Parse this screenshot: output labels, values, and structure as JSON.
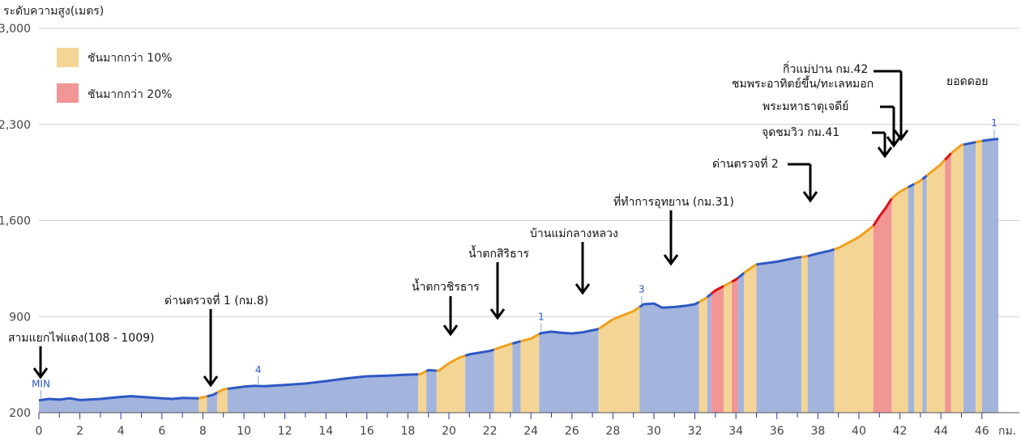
{
  "chart_data": {
    "type": "area",
    "title": "ระดับความสูง(เมตร)",
    "xlabel": "กม.",
    "ylabel": "",
    "xlim": [
      0,
      46.8
    ],
    "ylim": [
      200,
      3000
    ],
    "yticks": [
      200,
      900,
      1600,
      2300,
      3000
    ],
    "ytick_labels": [
      "200",
      "900",
      "1,600",
      "2,300",
      "3,000"
    ],
    "xticks": [
      0,
      2,
      4,
      6,
      8,
      10,
      12,
      14,
      16,
      18,
      20,
      22,
      24,
      26,
      28,
      30,
      32,
      34,
      36,
      38,
      40,
      42,
      44,
      46
    ],
    "xtick_labels": [
      "0",
      "2",
      "4",
      "6",
      "8",
      "10",
      "12",
      "14",
      "16",
      "18",
      "20",
      "22",
      "24",
      "26",
      "28",
      "30",
      "32",
      "34",
      "36",
      "38",
      "40",
      "42",
      "44",
      "46"
    ],
    "grid": true,
    "legend": [
      {
        "label": "ชันมากกว่า 10%",
        "color": "#f5d595"
      },
      {
        "label": "ชันมากกว่า 20%",
        "color": "#f19595"
      }
    ],
    "colors": {
      "flat_fill": "#a3b4dd",
      "flat_line": "#2d58c4",
      "steep10_fill": "#f5d595",
      "steep10_line": "#f0a020",
      "steep20_fill": "#f19595",
      "steep20_line": "#e01010"
    },
    "profile": [
      [
        0,
        290
      ],
      [
        0.5,
        300
      ],
      [
        1,
        295
      ],
      [
        1.5,
        305
      ],
      [
        2,
        292
      ],
      [
        3,
        300
      ],
      [
        4,
        315
      ],
      [
        4.5,
        320
      ],
      [
        5,
        315
      ],
      [
        6,
        305
      ],
      [
        6.5,
        300
      ],
      [
        7,
        308
      ],
      [
        7.8,
        305
      ],
      [
        8.5,
        330
      ],
      [
        9,
        370
      ],
      [
        10,
        390
      ],
      [
        10.5,
        395
      ],
      [
        11,
        393
      ],
      [
        12,
        402
      ],
      [
        13,
        412
      ],
      [
        14,
        430
      ],
      [
        15,
        450
      ],
      [
        16,
        465
      ],
      [
        17,
        470
      ],
      [
        18,
        477
      ],
      [
        18.6,
        480
      ],
      [
        19,
        510
      ],
      [
        19.5,
        505
      ],
      [
        20,
        560
      ],
      [
        20.5,
        600
      ],
      [
        21,
        625
      ],
      [
        22,
        650
      ],
      [
        23,
        700
      ],
      [
        24,
        740
      ],
      [
        24.5,
        780
      ],
      [
        25,
        790
      ],
      [
        25.5,
        782
      ],
      [
        26,
        777
      ],
      [
        26.5,
        785
      ],
      [
        27,
        800
      ],
      [
        27.3,
        810
      ],
      [
        28,
        880
      ],
      [
        29,
        940
      ],
      [
        29.5,
        990
      ],
      [
        30,
        995
      ],
      [
        30.4,
        965
      ],
      [
        31,
        970
      ],
      [
        31.6,
        980
      ],
      [
        32,
        990
      ],
      [
        32.5,
        1030
      ],
      [
        33,
        1090
      ],
      [
        34,
        1170
      ],
      [
        34.5,
        1230
      ],
      [
        35,
        1280
      ],
      [
        35.5,
        1290
      ],
      [
        36,
        1300
      ],
      [
        37,
        1330
      ],
      [
        37.5,
        1340
      ],
      [
        38,
        1360
      ],
      [
        38.6,
        1380
      ],
      [
        39,
        1400
      ],
      [
        40,
        1480
      ],
      [
        40.7,
        1560
      ],
      [
        41,
        1630
      ],
      [
        41.3,
        1690
      ],
      [
        41.6,
        1760
      ],
      [
        42,
        1810
      ],
      [
        42.5,
        1850
      ],
      [
        43,
        1890
      ],
      [
        43.5,
        1950
      ],
      [
        44,
        2010
      ],
      [
        44.5,
        2090
      ],
      [
        45,
        2150
      ],
      [
        45.5,
        2165
      ],
      [
        46,
        2180
      ],
      [
        46.5,
        2190
      ],
      [
        46.8,
        2195
      ]
    ],
    "segments": [
      [
        0,
        7.8,
        "flat"
      ],
      [
        7.8,
        8.2,
        "s10"
      ],
      [
        8.2,
        8.7,
        "flat"
      ],
      [
        8.7,
        9.2,
        "s10"
      ],
      [
        9.2,
        18.5,
        "flat"
      ],
      [
        18.5,
        18.9,
        "s10"
      ],
      [
        18.9,
        19.4,
        "flat"
      ],
      [
        19.4,
        20.8,
        "s10"
      ],
      [
        20.8,
        22.2,
        "flat"
      ],
      [
        22.2,
        23.1,
        "s10"
      ],
      [
        23.1,
        23.5,
        "flat"
      ],
      [
        23.5,
        24.4,
        "s10"
      ],
      [
        24.4,
        27.3,
        "flat"
      ],
      [
        27.3,
        29.3,
        "s10"
      ],
      [
        29.3,
        32.2,
        "flat"
      ],
      [
        32.2,
        32.6,
        "s10"
      ],
      [
        32.6,
        32.8,
        "flat"
      ],
      [
        32.8,
        33.4,
        "s20"
      ],
      [
        33.4,
        33.8,
        "s10"
      ],
      [
        33.8,
        34.1,
        "s20"
      ],
      [
        34.1,
        34.4,
        "flat"
      ],
      [
        34.4,
        35,
        "s10"
      ],
      [
        35,
        37.2,
        "flat"
      ],
      [
        37.2,
        37.5,
        "s10"
      ],
      [
        37.5,
        38.8,
        "flat"
      ],
      [
        38.8,
        40.7,
        "s10"
      ],
      [
        40.7,
        41.6,
        "s20"
      ],
      [
        41.6,
        42.4,
        "s10"
      ],
      [
        42.4,
        42.7,
        "flat"
      ],
      [
        42.7,
        43.1,
        "s10"
      ],
      [
        43.1,
        43.3,
        "flat"
      ],
      [
        43.3,
        44.2,
        "s10"
      ],
      [
        44.2,
        44.5,
        "s20"
      ],
      [
        44.5,
        45.1,
        "s10"
      ],
      [
        45.1,
        45.7,
        "flat"
      ],
      [
        45.7,
        46,
        "s10"
      ],
      [
        46,
        46.8,
        "flat"
      ]
    ],
    "annotations": [
      {
        "text": "สามแยกไฟแดง(108 - 1009)",
        "x": 0.1
      },
      {
        "text": "ด่านตรวจที่ 1 (กม.8)",
        "x": 8.4
      },
      {
        "text": "น้ำตกวชิรธาร",
        "x": 19.9
      },
      {
        "text": "น้ำตกสิริธาร",
        "x": 22.2
      },
      {
        "text": "บ้านแม่กลางหลวง",
        "x": 26.3
      },
      {
        "text": "ที่ทำการอุทยาน (กม.31)",
        "x": 30.6
      },
      {
        "text": "ด่านตรวจที่ 2",
        "x": 37.5
      },
      {
        "text": "จุดชมวิว กม.41",
        "x": 40.9
      },
      {
        "text": "พระมหาธาตุเจดีย์",
        "x": 41.4
      },
      {
        "text": "ชมพระอาทิตย์ขึ้น/ทะเลหมอก",
        "x": 41.7
      },
      {
        "text": "กิ่วแม่ปาน กม.42",
        "x": 41.9
      },
      {
        "text": "ยอดดอย",
        "x": 46.6
      }
    ],
    "markers": [
      {
        "label": "MIN",
        "x": 0.1
      },
      {
        "label": "4",
        "x": 10.7
      },
      {
        "label": "1",
        "x": 24.5
      },
      {
        "label": "3",
        "x": 29.4
      },
      {
        "label": "1",
        "x": 46.6
      }
    ]
  }
}
